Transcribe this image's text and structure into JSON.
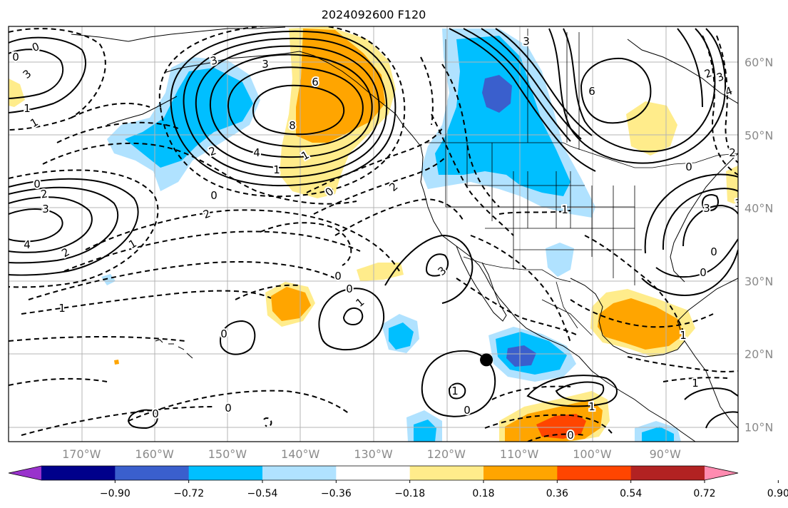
{
  "title": "2024092600 F120",
  "longitude_labels": [
    "170°W",
    "160°W",
    "150°W",
    "140°W",
    "130°W",
    "120°W",
    "110°W",
    "100°W",
    "90°W"
  ],
  "latitude_labels": [
    "60°N",
    "50°N",
    "40°N",
    "30°N",
    "20°N",
    "10°N"
  ],
  "colorbar": {
    "tick_labels": [
      "−0.90",
      "−0.72",
      "−0.54",
      "−0.36",
      "−0.18",
      "0.18",
      "0.36",
      "0.54",
      "0.72",
      "0.90"
    ],
    "colors": [
      "#9932cc",
      "#00008b",
      "#3a5fcd",
      "#00bfff",
      "#b0e2ff",
      "#ffffff",
      "#ffec8b",
      "#ffa500",
      "#ff4500",
      "#b22222",
      "#ff8bb0"
    ]
  },
  "contour_labels": [
    "0",
    "1",
    "1",
    "3",
    "4",
    "0",
    "2",
    "3",
    "4",
    "2",
    "1",
    "3",
    "3",
    "2",
    "6",
    "8",
    "4",
    "1",
    "1",
    "0",
    "0",
    "2",
    "0",
    "2",
    "3",
    "1",
    "0",
    "0",
    "1",
    "1",
    "0",
    "1",
    "0",
    "0",
    "0",
    "3",
    "6",
    "2",
    "3",
    "4",
    "2",
    "0",
    "3",
    "3",
    "0",
    "1",
    "0",
    "1",
    "0",
    "1"
  ],
  "marker": {
    "lat": 19.2,
    "lon": -114.5
  }
}
